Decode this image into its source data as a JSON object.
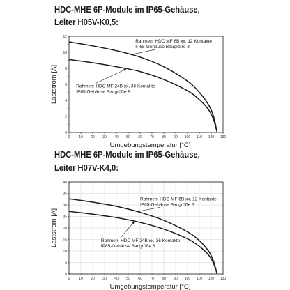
{
  "titles": {
    "chart1_line1": "HDC-MHE 6P-Module im IP65-Gehäuse,",
    "chart1_line2": "Leiter H05V-K0,5:",
    "chart2_line1": "HDC-MHE 6P-Module im IP65-Gehäuse,",
    "chart2_line2": "Leiter H07V-K4,0:"
  },
  "chart_data": [
    {
      "type": "line",
      "xlabel": "Umgebungstemperatur [°C]",
      "ylabel": "Laststrom [A]",
      "xlim": [
        0,
        130
      ],
      "ylim": [
        0,
        12
      ],
      "xticks": [
        0,
        10,
        20,
        30,
        40,
        50,
        60,
        70,
        80,
        90,
        100,
        110,
        120,
        130
      ],
      "yticks": [
        0,
        1,
        2,
        3,
        4,
        5,
        6,
        7,
        8,
        9,
        10,
        11,
        12
      ],
      "ytick_labels": [
        "0",
        "",
        "2",
        "",
        "4",
        "",
        "6",
        "",
        "8",
        "",
        "10",
        "",
        "12"
      ],
      "grid": false,
      "series": [
        {
          "x": [
            0,
            20,
            40,
            60,
            80,
            100,
            110,
            118,
            122,
            125
          ],
          "y": [
            11.3,
            10.8,
            10.2,
            9.4,
            8.2,
            6.4,
            5.0,
            3.4,
            2.0,
            0
          ]
        },
        {
          "x": [
            0,
            20,
            40,
            60,
            80,
            100,
            110,
            118,
            122,
            125
          ],
          "y": [
            9.1,
            8.7,
            8.2,
            7.6,
            6.6,
            5.2,
            4.1,
            2.8,
            1.6,
            0
          ]
        }
      ],
      "annotations": [
        {
          "lines": [
            "Rahmen: HDC MF 6B xx, 12 Kontakte",
            "IP65-Gehäuse Baugröße 3"
          ],
          "x": 56,
          "y": 11.2,
          "arrow_to": [
            52,
            9.7
          ]
        },
        {
          "lines": [
            "Rahmen: HDC MF 24B xx, 36 Kontakte",
            "IP65-Gehäuse Baugröße 8"
          ],
          "x": 6,
          "y": 5.6,
          "arrow_to": [
            48,
            7.9
          ]
        }
      ]
    },
    {
      "type": "line",
      "xlabel": "Umgebungstemperatur [°C]",
      "ylabel": "Laststrom [A]",
      "xlim": [
        0,
        130
      ],
      "ylim": [
        0,
        40
      ],
      "xticks": [
        0,
        10,
        20,
        30,
        40,
        50,
        60,
        70,
        80,
        90,
        100,
        110,
        120,
        130
      ],
      "yticks": [
        0,
        5,
        10,
        15,
        20,
        25,
        30,
        35,
        40
      ],
      "ytick_labels": [
        "0",
        "5",
        "10",
        "15",
        "20",
        "25",
        "30",
        "35",
        "40"
      ],
      "grid": true,
      "series": [
        {
          "x": [
            0,
            20,
            40,
            60,
            80,
            100,
            110,
            118,
            122,
            125
          ],
          "y": [
            32.7,
            31.2,
            29.4,
            26.8,
            23.3,
            18.3,
            14.5,
            9.8,
            5.5,
            0
          ]
        },
        {
          "x": [
            0,
            20,
            40,
            60,
            80,
            100,
            110,
            118,
            122,
            125
          ],
          "y": [
            27.2,
            26.0,
            24.5,
            22.4,
            19.5,
            15.3,
            12.0,
            8.1,
            4.6,
            0
          ]
        }
      ],
      "annotations": [
        {
          "lines": [
            "Rahmen: HDC MF 6B xx, 12 Kontakte",
            "IP65-Gehäuse Baugröße 3"
          ],
          "x": 60,
          "y": 32,
          "arrow_to": [
            58,
            27.2
          ]
        },
        {
          "lines": [
            "Rahmen: HDC MF 24B xx, 36 Kontakte",
            "IP65-Gehäuse Baugröße 8"
          ],
          "x": 27,
          "y": 14,
          "arrow_to": [
            55,
            22.7
          ]
        }
      ]
    }
  ]
}
